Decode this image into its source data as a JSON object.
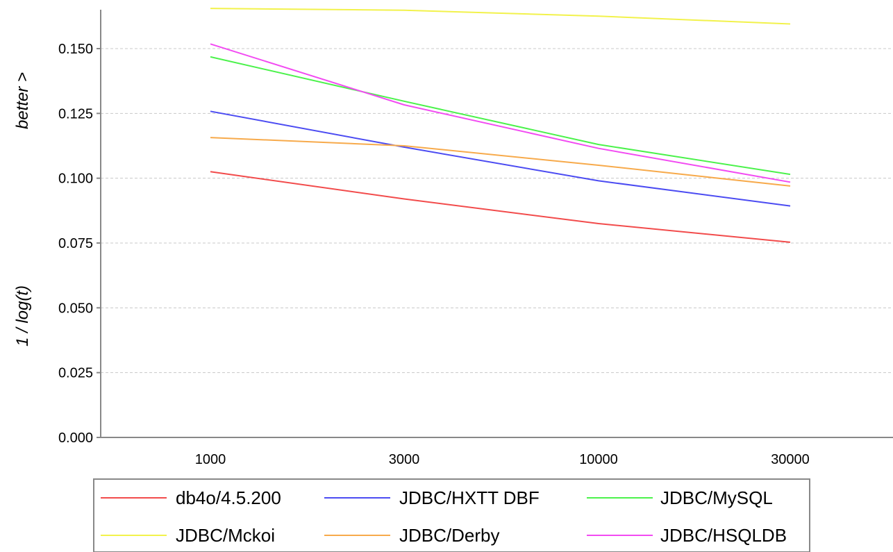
{
  "chart_data": {
    "type": "line",
    "title": "",
    "xlabel": "",
    "ylabel_parts": [
      "1  /  log(t)",
      "better >"
    ],
    "x": [
      1000,
      3000,
      10000,
      30000
    ],
    "x_tick_labels": [
      "1000",
      "3000",
      "10000",
      "30000"
    ],
    "x_scale": "category",
    "ylim": [
      0.0,
      0.165
    ],
    "y_ticks": [
      0.0,
      0.025,
      0.05,
      0.075,
      0.1,
      0.125,
      0.15
    ],
    "y_tick_labels": [
      "0.000",
      "0.025",
      "0.050",
      "0.075",
      "0.100",
      "0.125",
      "0.150"
    ],
    "grid": "horizontal dashed",
    "legend_position": "bottom",
    "series": [
      {
        "name": "db4o/4.5.200",
        "color": "#f24b4b",
        "values": [
          0.1025,
          0.092,
          0.0825,
          0.0753
        ]
      },
      {
        "name": "JDBC/HXTT DBF",
        "color": "#4b4bf2",
        "values": [
          0.1258,
          0.112,
          0.099,
          0.0893
        ]
      },
      {
        "name": "JDBC/MySQL",
        "color": "#4bf24b",
        "values": [
          0.1468,
          0.1297,
          0.113,
          0.1015
        ]
      },
      {
        "name": "JDBC/Mckoi",
        "color": "#f2f24b",
        "values": [
          0.1655,
          0.1648,
          0.1625,
          0.1595
        ]
      },
      {
        "name": "JDBC/Derby",
        "color": "#f7aa4b",
        "values": [
          0.1157,
          0.1125,
          0.105,
          0.097
        ]
      },
      {
        "name": "JDBC/HSQLDB",
        "color": "#f24bf2",
        "values": [
          0.1518,
          0.1283,
          0.1115,
          0.0985
        ]
      }
    ]
  }
}
